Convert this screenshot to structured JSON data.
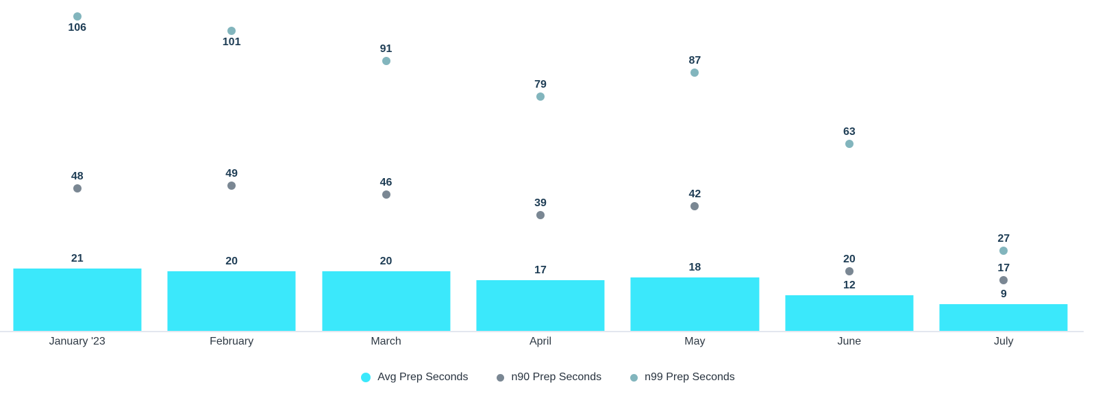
{
  "chart_data": {
    "type": "bar",
    "title": "",
    "xlabel": "",
    "ylabel": "",
    "categories": [
      "January '23",
      "February",
      "March",
      "April",
      "May",
      "June",
      "July"
    ],
    "series": [
      {
        "name": "Avg Prep Seconds",
        "type": "bar",
        "color": "#3be8fb",
        "values": [
          21,
          20,
          20,
          17,
          18,
          12,
          9
        ]
      },
      {
        "name": "n90 Prep Seconds",
        "type": "scatter",
        "color": "#7a8793",
        "values": [
          48,
          49,
          46,
          39,
          42,
          20,
          17
        ],
        "label_below": [
          false,
          false,
          false,
          false,
          false,
          false,
          false
        ]
      },
      {
        "name": "n99 Prep Seconds",
        "type": "scatter",
        "color": "#82b5bd",
        "values": [
          106,
          101,
          91,
          79,
          87,
          63,
          27
        ],
        "label_below": [
          true,
          true,
          false,
          false,
          false,
          false,
          false
        ]
      }
    ],
    "ylim": [
      0,
      111.5
    ],
    "grid": false,
    "legend_position": "bottom",
    "data_label_color": "#1d3c54",
    "axis_label_color": "#2e3944",
    "axis_line_color": "#e3e6ef",
    "background_color": "#ffffff"
  }
}
